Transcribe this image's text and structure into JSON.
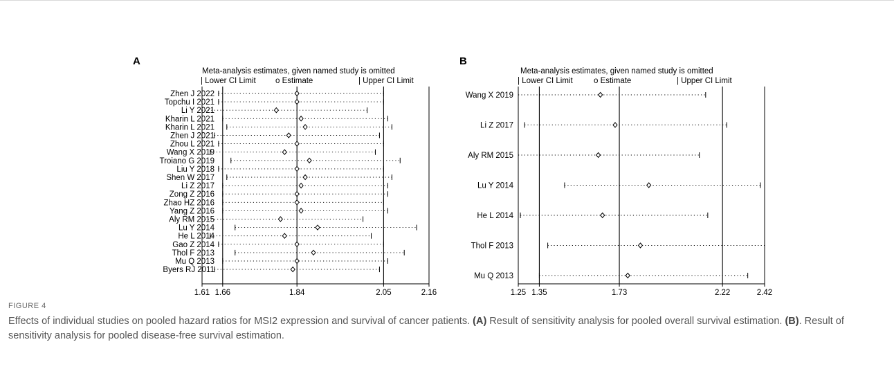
{
  "figure": {
    "label": "FIGURE 4",
    "caption_parts": [
      {
        "t": "Effects of individual studies on pooled hazard ratios for MSI2 expression and survival of cancer patients. ",
        "b": false
      },
      {
        "t": "(A)",
        "b": true
      },
      {
        "t": " Result of sensitivity analysis for pooled overall survival estimation. ",
        "b": false
      },
      {
        "t": "(B)",
        "b": true
      },
      {
        "t": ". Result of sensitivity analysis for pooled disease-free survival estimation.",
        "b": false
      }
    ]
  },
  "colors": {
    "line": "#000000",
    "text": "#000000",
    "caption": "#555555"
  },
  "chart_data": [
    {
      "type": "forest",
      "panel": "A",
      "title": "Meta-analysis estimates, given named study is omitted",
      "legend": [
        "| Lower CI Limit",
        "o Estimate",
        "| Upper CI Limit"
      ],
      "xlim": [
        1.61,
        2.16
      ],
      "xticks": [
        1.61,
        1.66,
        1.84,
        2.05,
        2.16
      ],
      "ref_lines": [
        1.66,
        1.84,
        2.05
      ],
      "studies": [
        {
          "name": "Zhen J 2022",
          "lower": 1.65,
          "est": 1.84,
          "upper": 2.05
        },
        {
          "name": "Topchu I 2021",
          "lower": 1.65,
          "est": 1.84,
          "upper": 2.05
        },
        {
          "name": "Li Y 2021",
          "lower": 1.61,
          "est": 1.79,
          "upper": 2.01
        },
        {
          "name": "Kharin L 2021",
          "lower": 1.66,
          "est": 1.85,
          "upper": 2.06
        },
        {
          "name": "Kharin L 2021",
          "lower": 1.67,
          "est": 1.86,
          "upper": 2.07
        },
        {
          "name": "Zhen J 2021",
          "lower": 1.64,
          "est": 1.82,
          "upper": 2.04
        },
        {
          "name": "Zhou L 2021",
          "lower": 1.65,
          "est": 1.84,
          "upper": 2.05
        },
        {
          "name": "Wang X 2019",
          "lower": 1.63,
          "est": 1.81,
          "upper": 2.03
        },
        {
          "name": "Troiano G 2019",
          "lower": 1.68,
          "est": 1.87,
          "upper": 2.09
        },
        {
          "name": "Liu Y 2018",
          "lower": 1.65,
          "est": 1.84,
          "upper": 2.05
        },
        {
          "name": "Shen W 2017",
          "lower": 1.67,
          "est": 1.86,
          "upper": 2.07
        },
        {
          "name": "Li Z 2017",
          "lower": 1.66,
          "est": 1.85,
          "upper": 2.06
        },
        {
          "name": "Zong Z 2016",
          "lower": 1.66,
          "est": 1.84,
          "upper": 2.06
        },
        {
          "name": "Zhao HZ 2016",
          "lower": 1.66,
          "est": 1.84,
          "upper": 2.05
        },
        {
          "name": "Yang Z 2016",
          "lower": 1.66,
          "est": 1.85,
          "upper": 2.06
        },
        {
          "name": "Aly RM 2015",
          "lower": 1.61,
          "est": 1.8,
          "upper": 2.0
        },
        {
          "name": "Lu Y 2014",
          "lower": 1.69,
          "est": 1.89,
          "upper": 2.13
        },
        {
          "name": "He L 2014",
          "lower": 1.63,
          "est": 1.81,
          "upper": 2.02
        },
        {
          "name": "Gao Z 2014",
          "lower": 1.65,
          "est": 1.84,
          "upper": 2.05
        },
        {
          "name": "Thol F 2013",
          "lower": 1.69,
          "est": 1.88,
          "upper": 2.1
        },
        {
          "name": "Mu Q 2013",
          "lower": 1.66,
          "est": 1.84,
          "upper": 2.06
        },
        {
          "name": "Byers RJ 2011",
          "lower": 1.64,
          "est": 1.83,
          "upper": 2.04
        }
      ]
    },
    {
      "type": "forest",
      "panel": "B",
      "title": "Meta-analysis estimates, given named study is omitted",
      "legend": [
        "| Lower CI Limit",
        "o Estimate",
        "| Upper CI Limit"
      ],
      "xlim": [
        1.25,
        2.42
      ],
      "xticks": [
        1.25,
        1.35,
        1.73,
        2.22,
        2.42
      ],
      "ref_lines": [
        1.35,
        1.73,
        2.22
      ],
      "studies": [
        {
          "name": "Wang X 2019",
          "lower": 1.25,
          "est": 1.64,
          "upper": 2.14
        },
        {
          "name": "Li Z 2017",
          "lower": 1.28,
          "est": 1.71,
          "upper": 2.24
        },
        {
          "name": "Aly RM 2015",
          "lower": 1.25,
          "est": 1.63,
          "upper": 2.11
        },
        {
          "name": "Lu Y 2014",
          "lower": 1.47,
          "est": 1.87,
          "upper": 2.4
        },
        {
          "name": "He L 2014",
          "lower": 1.26,
          "est": 1.65,
          "upper": 2.15
        },
        {
          "name": "Thol F 2013",
          "lower": 1.39,
          "est": 1.83,
          "upper": 2.42
        },
        {
          "name": "Mu Q 2013",
          "lower": 1.35,
          "est": 1.77,
          "upper": 2.34
        }
      ]
    }
  ]
}
